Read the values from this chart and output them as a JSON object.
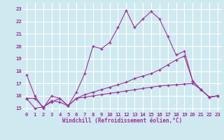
{
  "xlabel": "Windchill (Refroidissement éolien,°C)",
  "bg_color": "#cfe9f0",
  "line_color": "#993399",
  "grid_color": "#ffffff",
  "xlim": [
    -0.5,
    23.5
  ],
  "ylim": [
    14.7,
    23.5
  ],
  "yticks": [
    15,
    16,
    17,
    18,
    19,
    20,
    21,
    22,
    23
  ],
  "xticks": [
    0,
    1,
    2,
    3,
    4,
    5,
    6,
    7,
    8,
    9,
    10,
    11,
    12,
    13,
    14,
    15,
    16,
    17,
    18,
    19,
    20,
    21,
    22,
    23
  ],
  "line1_y": [
    17.7,
    16.0,
    15.0,
    16.0,
    15.8,
    15.2,
    16.3,
    17.8,
    20.0,
    19.8,
    20.3,
    21.5,
    22.9,
    21.5,
    22.2,
    22.8,
    22.2,
    20.8,
    19.3,
    19.6,
    17.2,
    16.5,
    15.9,
    16.0
  ],
  "line2_y": [
    15.8,
    15.8,
    15.1,
    15.5,
    15.8,
    15.2,
    15.8,
    16.1,
    16.3,
    16.5,
    16.7,
    16.9,
    17.1,
    17.4,
    17.6,
    17.8,
    18.1,
    18.5,
    18.9,
    19.2,
    17.2,
    16.5,
    15.9,
    16.0
  ],
  "line3_y": [
    15.8,
    15.0,
    15.1,
    15.6,
    15.5,
    15.2,
    15.8,
    15.9,
    16.0,
    16.1,
    16.2,
    16.3,
    16.4,
    16.5,
    16.6,
    16.7,
    16.8,
    16.85,
    16.9,
    16.95,
    17.0,
    16.5,
    15.9,
    16.0
  ]
}
